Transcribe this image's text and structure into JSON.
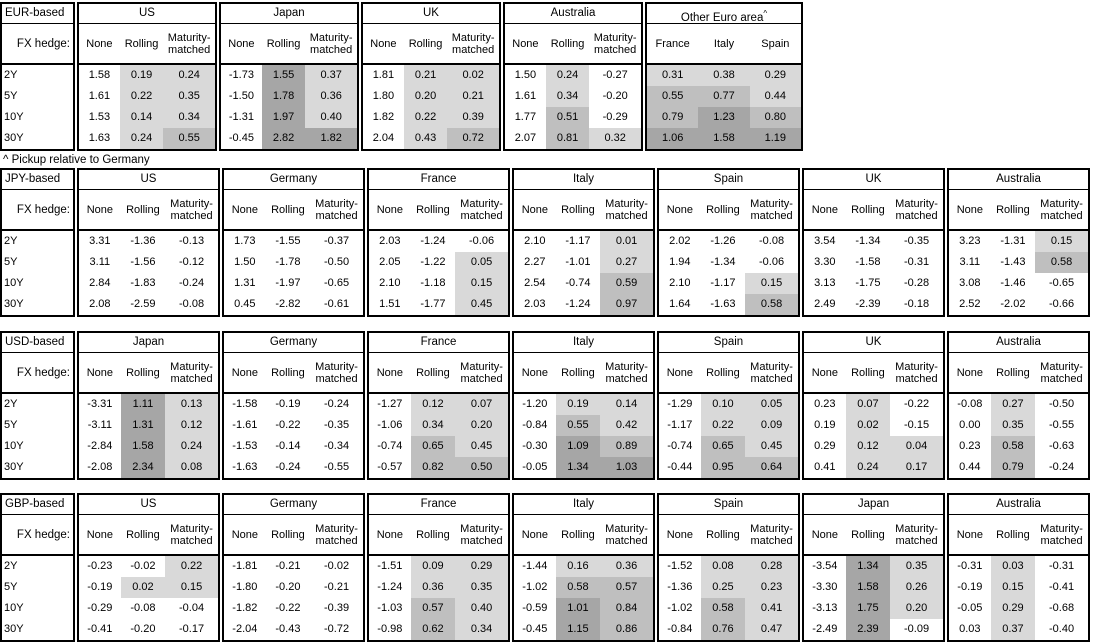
{
  "colors": {
    "shade_light": "#d9d9d9",
    "shade_medium": "#bfbfbf",
    "shade_dark": "#a6a6a6",
    "border": "#000000"
  },
  "footnote": "^ Pickup relative to Germany",
  "fx_hedge_label": "FX hedge:",
  "row_labels": [
    "2Y",
    "5Y",
    "10Y",
    "30Y"
  ],
  "hedge_columns": [
    "None",
    "Rolling",
    "Maturity-matched"
  ],
  "shading_rule": {
    "negative": "none",
    "0_to_0.5": "light",
    "0.5_to_1": "medium",
    "over_1": "dark",
    "none_column": "never shaded"
  },
  "tables": [
    {
      "base": "EUR-based",
      "groups": [
        {
          "name": "US",
          "hedged": true,
          "columns": [
            "None",
            "Rolling",
            "Maturity-matched"
          ],
          "rows": [
            [
              "1.58",
              "0.19",
              "0.24"
            ],
            [
              "1.61",
              "0.22",
              "0.35"
            ],
            [
              "1.53",
              "0.14",
              "0.34"
            ],
            [
              "1.63",
              "0.24",
              "0.55"
            ]
          ]
        },
        {
          "name": "Japan",
          "hedged": true,
          "columns": [
            "None",
            "Rolling",
            "Maturity-matched"
          ],
          "rows": [
            [
              "-1.73",
              "1.55",
              "0.37"
            ],
            [
              "-1.50",
              "1.78",
              "0.36"
            ],
            [
              "-1.31",
              "1.97",
              "0.40"
            ],
            [
              "-0.45",
              "2.82",
              "1.82"
            ]
          ]
        },
        {
          "name": "UK",
          "hedged": true,
          "columns": [
            "None",
            "Rolling",
            "Maturity-matched"
          ],
          "rows": [
            [
              "1.81",
              "0.21",
              "0.02"
            ],
            [
              "1.80",
              "0.20",
              "0.21"
            ],
            [
              "1.82",
              "0.22",
              "0.39"
            ],
            [
              "2.04",
              "0.43",
              "0.72"
            ]
          ]
        },
        {
          "name": "Australia",
          "hedged": true,
          "columns": [
            "None",
            "Rolling",
            "Maturity-matched"
          ],
          "rows": [
            [
              "1.50",
              "0.24",
              "-0.27"
            ],
            [
              "1.61",
              "0.34",
              "-0.20"
            ],
            [
              "1.77",
              "0.51",
              "-0.29"
            ],
            [
              "2.07",
              "0.81",
              "0.32"
            ]
          ]
        },
        {
          "name": "Other Euro area",
          "sup": "^",
          "hedged": false,
          "columns": [
            "France",
            "Italy",
            "Spain"
          ],
          "rows": [
            [
              "0.31",
              "0.38",
              "0.29"
            ],
            [
              "0.55",
              "0.77",
              "0.44"
            ],
            [
              "0.79",
              "1.23",
              "0.80"
            ],
            [
              "1.06",
              "1.58",
              "1.19"
            ]
          ]
        }
      ]
    },
    {
      "base": "JPY-based",
      "groups": [
        {
          "name": "US",
          "hedged": true,
          "columns": [
            "None",
            "Rolling",
            "Maturity-matched"
          ],
          "rows": [
            [
              "3.31",
              "-1.36",
              "-0.13"
            ],
            [
              "3.11",
              "-1.56",
              "-0.12"
            ],
            [
              "2.84",
              "-1.83",
              "-0.24"
            ],
            [
              "2.08",
              "-2.59",
              "-0.08"
            ]
          ]
        },
        {
          "name": "Germany",
          "hedged": true,
          "columns": [
            "None",
            "Rolling",
            "Maturity-matched"
          ],
          "rows": [
            [
              "1.73",
              "-1.55",
              "-0.37"
            ],
            [
              "1.50",
              "-1.78",
              "-0.50"
            ],
            [
              "1.31",
              "-1.97",
              "-0.65"
            ],
            [
              "0.45",
              "-2.82",
              "-0.61"
            ]
          ]
        },
        {
          "name": "France",
          "hedged": true,
          "columns": [
            "None",
            "Rolling",
            "Maturity-matched"
          ],
          "rows": [
            [
              "2.03",
              "-1.24",
              "-0.06"
            ],
            [
              "2.05",
              "-1.22",
              "0.05"
            ],
            [
              "2.10",
              "-1.18",
              "0.15"
            ],
            [
              "1.51",
              "-1.77",
              "0.45"
            ]
          ]
        },
        {
          "name": "Italy",
          "hedged": true,
          "columns": [
            "None",
            "Rolling",
            "Maturity-matched"
          ],
          "rows": [
            [
              "2.10",
              "-1.17",
              "0.01"
            ],
            [
              "2.27",
              "-1.01",
              "0.27"
            ],
            [
              "2.54",
              "-0.74",
              "0.59"
            ],
            [
              "2.03",
              "-1.24",
              "0.97"
            ]
          ]
        },
        {
          "name": "Spain",
          "hedged": true,
          "columns": [
            "None",
            "Rolling",
            "Maturity-matched"
          ],
          "rows": [
            [
              "2.02",
              "-1.26",
              "-0.08"
            ],
            [
              "1.94",
              "-1.34",
              "-0.06"
            ],
            [
              "2.10",
              "-1.17",
              "0.15"
            ],
            [
              "1.64",
              "-1.63",
              "0.58"
            ]
          ]
        },
        {
          "name": "UK",
          "hedged": true,
          "columns": [
            "None",
            "Rolling",
            "Maturity-matched"
          ],
          "rows": [
            [
              "3.54",
              "-1.34",
              "-0.35"
            ],
            [
              "3.30",
              "-1.58",
              "-0.31"
            ],
            [
              "3.13",
              "-1.75",
              "-0.28"
            ],
            [
              "2.49",
              "-2.39",
              "-0.18"
            ]
          ]
        },
        {
          "name": "Australia",
          "hedged": true,
          "columns": [
            "None",
            "Rolling",
            "Maturity-matched"
          ],
          "rows": [
            [
              "3.23",
              "-1.31",
              "0.15"
            ],
            [
              "3.11",
              "-1.43",
              "0.58"
            ],
            [
              "3.08",
              "-1.46",
              "-0.65"
            ],
            [
              "2.52",
              "-2.02",
              "-0.66"
            ]
          ]
        }
      ]
    },
    {
      "base": "USD-based",
      "groups": [
        {
          "name": "Japan",
          "hedged": true,
          "columns": [
            "None",
            "Rolling",
            "Maturity-matched"
          ],
          "rows": [
            [
              "-3.31",
              "1.11",
              "0.13"
            ],
            [
              "-3.11",
              "1.31",
              "0.12"
            ],
            [
              "-2.84",
              "1.58",
              "0.24"
            ],
            [
              "-2.08",
              "2.34",
              "0.08"
            ]
          ]
        },
        {
          "name": "Germany",
          "hedged": true,
          "columns": [
            "None",
            "Rolling",
            "Maturity-matched"
          ],
          "rows": [
            [
              "-1.58",
              "-0.19",
              "-0.24"
            ],
            [
              "-1.61",
              "-0.22",
              "-0.35"
            ],
            [
              "-1.53",
              "-0.14",
              "-0.34"
            ],
            [
              "-1.63",
              "-0.24",
              "-0.55"
            ]
          ]
        },
        {
          "name": "France",
          "hedged": true,
          "columns": [
            "None",
            "Rolling",
            "Maturity-matched"
          ],
          "rows": [
            [
              "-1.27",
              "0.12",
              "0.07"
            ],
            [
              "-1.06",
              "0.34",
              "0.20"
            ],
            [
              "-0.74",
              "0.65",
              "0.45"
            ],
            [
              "-0.57",
              "0.82",
              "0.50"
            ]
          ]
        },
        {
          "name": "Italy",
          "hedged": true,
          "columns": [
            "None",
            "Rolling",
            "Maturity-matched"
          ],
          "rows": [
            [
              "-1.20",
              "0.19",
              "0.14"
            ],
            [
              "-0.84",
              "0.55",
              "0.42"
            ],
            [
              "-0.30",
              "1.09",
              "0.89"
            ],
            [
              "-0.05",
              "1.34",
              "1.03"
            ]
          ]
        },
        {
          "name": "Spain",
          "hedged": true,
          "columns": [
            "None",
            "Rolling",
            "Maturity-matched"
          ],
          "rows": [
            [
              "-1.29",
              "0.10",
              "0.05"
            ],
            [
              "-1.17",
              "0.22",
              "0.09"
            ],
            [
              "-0.74",
              "0.65",
              "0.45"
            ],
            [
              "-0.44",
              "0.95",
              "0.64"
            ]
          ]
        },
        {
          "name": "UK",
          "hedged": true,
          "columns": [
            "None",
            "Rolling",
            "Maturity-matched"
          ],
          "rows": [
            [
              "0.23",
              "0.07",
              "-0.22"
            ],
            [
              "0.19",
              "0.02",
              "-0.15"
            ],
            [
              "0.29",
              "0.12",
              "0.04"
            ],
            [
              "0.41",
              "0.24",
              "0.17"
            ]
          ]
        },
        {
          "name": "Australia",
          "hedged": true,
          "columns": [
            "None",
            "Rolling",
            "Maturity-matched"
          ],
          "rows": [
            [
              "-0.08",
              "0.27",
              "-0.50"
            ],
            [
              "0.00",
              "0.35",
              "-0.55"
            ],
            [
              "0.23",
              "0.58",
              "-0.63"
            ],
            [
              "0.44",
              "0.79",
              "-0.24"
            ]
          ]
        }
      ]
    },
    {
      "base": "GBP-based",
      "groups": [
        {
          "name": "US",
          "hedged": true,
          "columns": [
            "None",
            "Rolling",
            "Maturity-matched"
          ],
          "rows": [
            [
              "-0.23",
              "-0.02",
              "0.22"
            ],
            [
              "-0.19",
              "0.02",
              "0.15"
            ],
            [
              "-0.29",
              "-0.08",
              "-0.04"
            ],
            [
              "-0.41",
              "-0.20",
              "-0.17"
            ]
          ]
        },
        {
          "name": "Germany",
          "hedged": true,
          "columns": [
            "None",
            "Rolling",
            "Maturity-matched"
          ],
          "rows": [
            [
              "-1.81",
              "-0.21",
              "-0.02"
            ],
            [
              "-1.80",
              "-0.20",
              "-0.21"
            ],
            [
              "-1.82",
              "-0.22",
              "-0.39"
            ],
            [
              "-2.04",
              "-0.43",
              "-0.72"
            ]
          ]
        },
        {
          "name": "France",
          "hedged": true,
          "columns": [
            "None",
            "Rolling",
            "Maturity-matched"
          ],
          "rows": [
            [
              "-1.51",
              "0.09",
              "0.29"
            ],
            [
              "-1.24",
              "0.36",
              "0.35"
            ],
            [
              "-1.03",
              "0.57",
              "0.40"
            ],
            [
              "-0.98",
              "0.62",
              "0.34"
            ]
          ]
        },
        {
          "name": "Italy",
          "hedged": true,
          "columns": [
            "None",
            "Rolling",
            "Maturity-matched"
          ],
          "rows": [
            [
              "-1.44",
              "0.16",
              "0.36"
            ],
            [
              "-1.02",
              "0.58",
              "0.57"
            ],
            [
              "-0.59",
              "1.01",
              "0.84"
            ],
            [
              "-0.45",
              "1.15",
              "0.86"
            ]
          ]
        },
        {
          "name": "Spain",
          "hedged": true,
          "columns": [
            "None",
            "Rolling",
            "Maturity-matched"
          ],
          "rows": [
            [
              "-1.52",
              "0.08",
              "0.28"
            ],
            [
              "-1.36",
              "0.25",
              "0.23"
            ],
            [
              "-1.02",
              "0.58",
              "0.41"
            ],
            [
              "-0.84",
              "0.76",
              "0.47"
            ]
          ]
        },
        {
          "name": "Japan",
          "hedged": true,
          "columns": [
            "None",
            "Rolling",
            "Maturity-matched"
          ],
          "rows": [
            [
              "-3.54",
              "1.34",
              "0.35"
            ],
            [
              "-3.30",
              "1.58",
              "0.26"
            ],
            [
              "-3.13",
              "1.75",
              "0.20"
            ],
            [
              "-2.49",
              "2.39",
              "-0.09"
            ]
          ]
        },
        {
          "name": "Australia",
          "hedged": true,
          "columns": [
            "None",
            "Rolling",
            "Maturity-matched"
          ],
          "rows": [
            [
              "-0.31",
              "0.03",
              "-0.31"
            ],
            [
              "-0.19",
              "0.15",
              "-0.41"
            ],
            [
              "-0.05",
              "0.29",
              "-0.68"
            ],
            [
              "0.03",
              "0.37",
              "-0.40"
            ]
          ]
        }
      ]
    }
  ]
}
